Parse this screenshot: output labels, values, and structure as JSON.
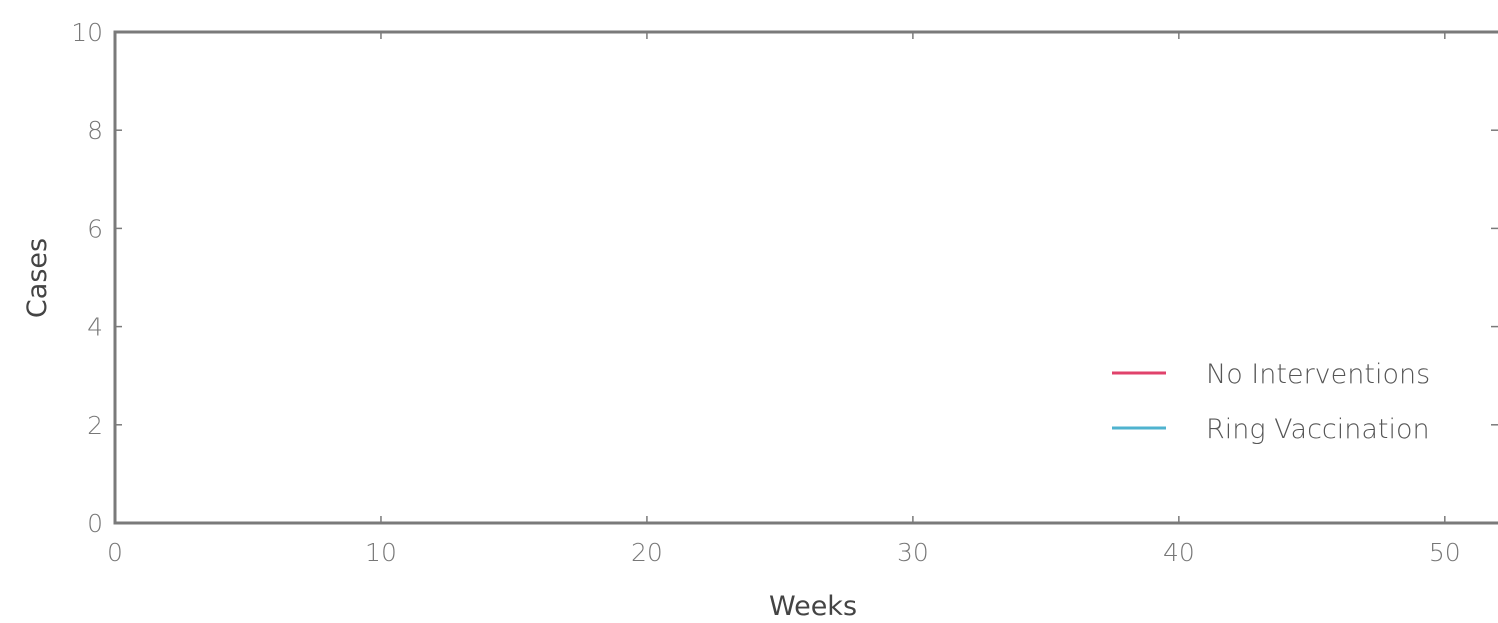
{
  "chart_data": {
    "type": "line",
    "title": "",
    "xlabel": "Weeks",
    "ylabel": "Cases",
    "xlim": [
      0,
      52
    ],
    "ylim": [
      0,
      10
    ],
    "xticks": [
      0,
      10,
      20,
      30,
      40,
      50
    ],
    "yticks": [
      0,
      2,
      4,
      6,
      8,
      10
    ],
    "grid": false,
    "legend_position": "lower-right",
    "series": [
      {
        "name": "No Interventions",
        "color": "#e0426b",
        "x": [],
        "y": []
      },
      {
        "name": "Ring Vaccination",
        "color": "#4fb3cf",
        "x": [],
        "y": []
      }
    ]
  }
}
